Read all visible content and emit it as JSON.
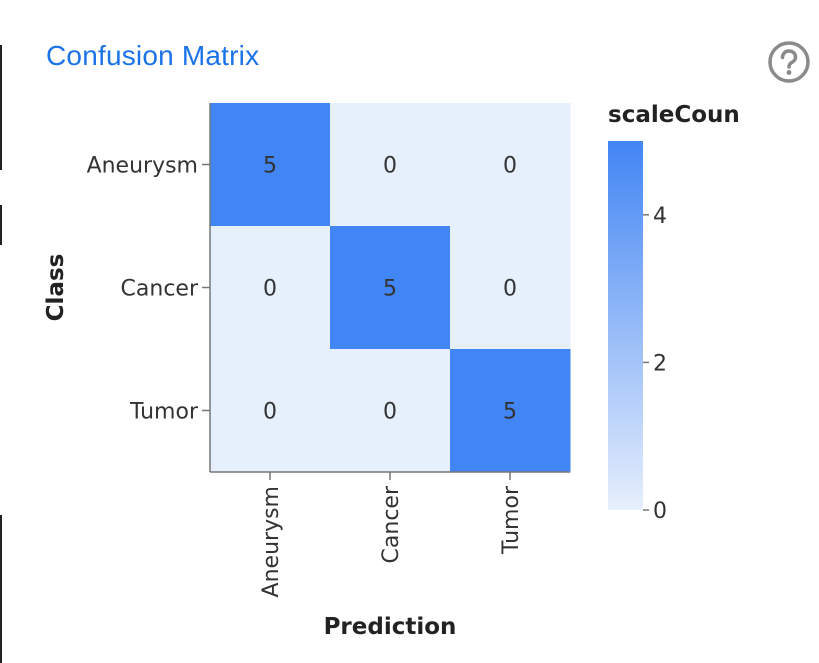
{
  "card": {
    "title": "Confusion Matrix",
    "help_icon": "help-circle-icon"
  },
  "chart_data": {
    "type": "heatmap",
    "x_title": "Prediction",
    "y_title": "Class",
    "x_categories": [
      "Aneurysm",
      "Cancer",
      "Tumor"
    ],
    "y_categories": [
      "Aneurysm",
      "Cancer",
      "Tumor"
    ],
    "matrix": [
      [
        5,
        0,
        0
      ],
      [
        0,
        5,
        0
      ],
      [
        0,
        0,
        5
      ]
    ],
    "legend": {
      "title": "scaleCoun",
      "ticks": [
        0,
        2,
        4
      ],
      "range": [
        0,
        5
      ]
    },
    "colors": {
      "low": "#e6effc",
      "high": "#4285f4"
    }
  }
}
